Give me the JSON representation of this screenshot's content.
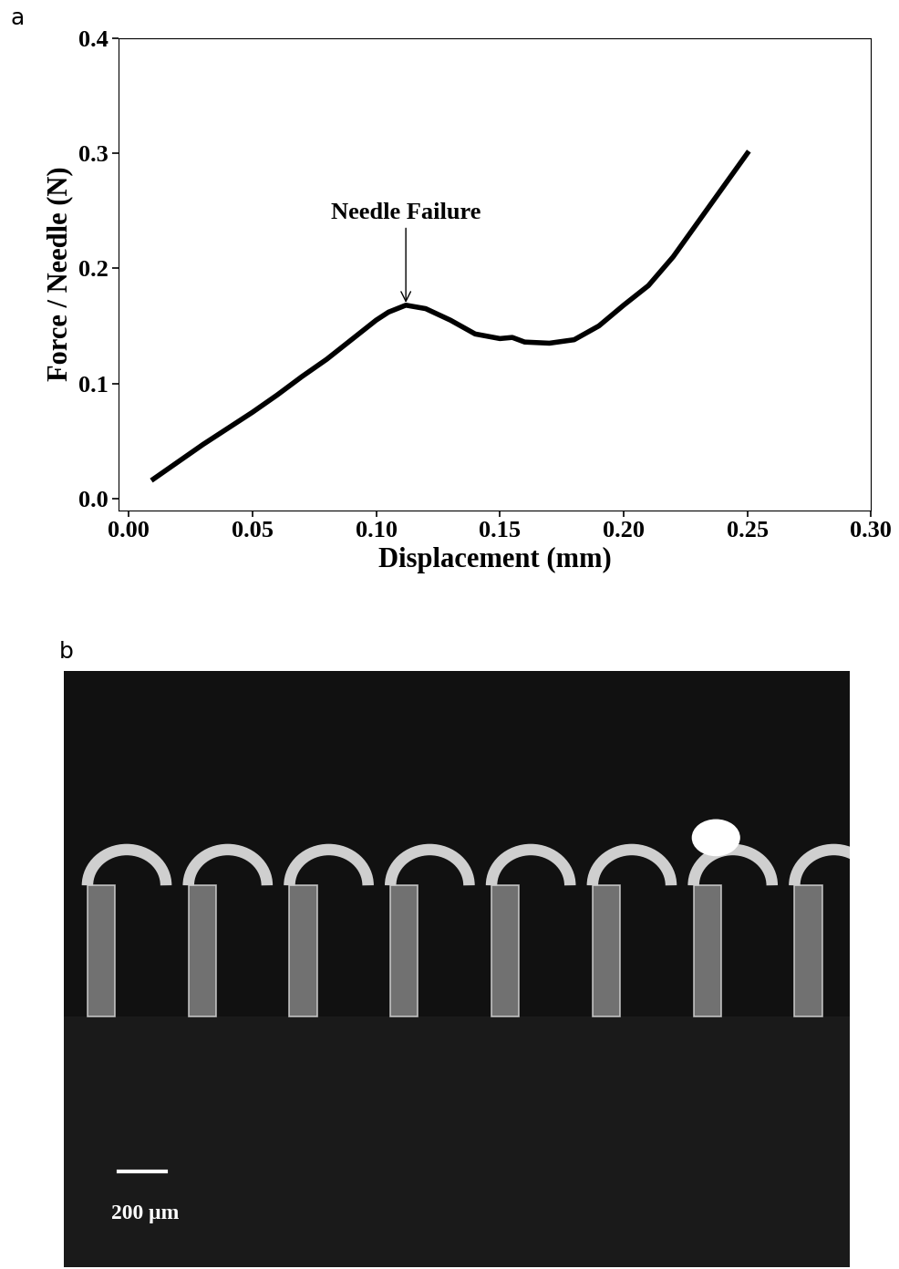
{
  "chart_data": {
    "type": "line",
    "panel_label": "a",
    "x_label": "Displacement (mm)",
    "y_label": "Force / Needle (N)",
    "x": [
      0.01,
      0.02,
      0.03,
      0.04,
      0.05,
      0.06,
      0.07,
      0.08,
      0.09,
      0.1,
      0.105,
      0.112,
      0.12,
      0.13,
      0.14,
      0.15,
      0.155,
      0.16,
      0.17,
      0.18,
      0.19,
      0.2,
      0.21,
      0.22,
      0.23,
      0.24,
      0.25
    ],
    "series": [
      {
        "name": "Force / Needle",
        "color": "#000000",
        "line_style": "solid",
        "values": [
          0.017,
          0.032,
          0.047,
          0.061,
          0.075,
          0.09,
          0.106,
          0.121,
          0.138,
          0.155,
          0.162,
          0.168,
          0.165,
          0.155,
          0.143,
          0.139,
          0.14,
          0.136,
          0.135,
          0.138,
          0.15,
          0.168,
          0.185,
          0.21,
          0.24,
          0.27,
          0.3
        ]
      }
    ],
    "annotations": [
      {
        "text": "Needle Failure",
        "x": 0.112,
        "y": 0.168
      }
    ],
    "xlim": [
      -0.004,
      0.3
    ],
    "ylim": [
      -0.01,
      0.4
    ],
    "xticks": [
      {
        "value": 0.0,
        "label": "0.00"
      },
      {
        "value": 0.05,
        "label": "0.05"
      },
      {
        "value": 0.1,
        "label": "0.10"
      },
      {
        "value": 0.15,
        "label": "0.15"
      },
      {
        "value": 0.2,
        "label": "0.20"
      },
      {
        "value": 0.25,
        "label": "0.25"
      },
      {
        "value": 0.3,
        "label": "0.30"
      }
    ],
    "yticks": [
      0.0,
      0.1,
      0.2,
      0.3,
      0.4
    ],
    "grid": false
  },
  "image_panel": {
    "panel_label": "b",
    "scale_bar": "200 μm"
  }
}
